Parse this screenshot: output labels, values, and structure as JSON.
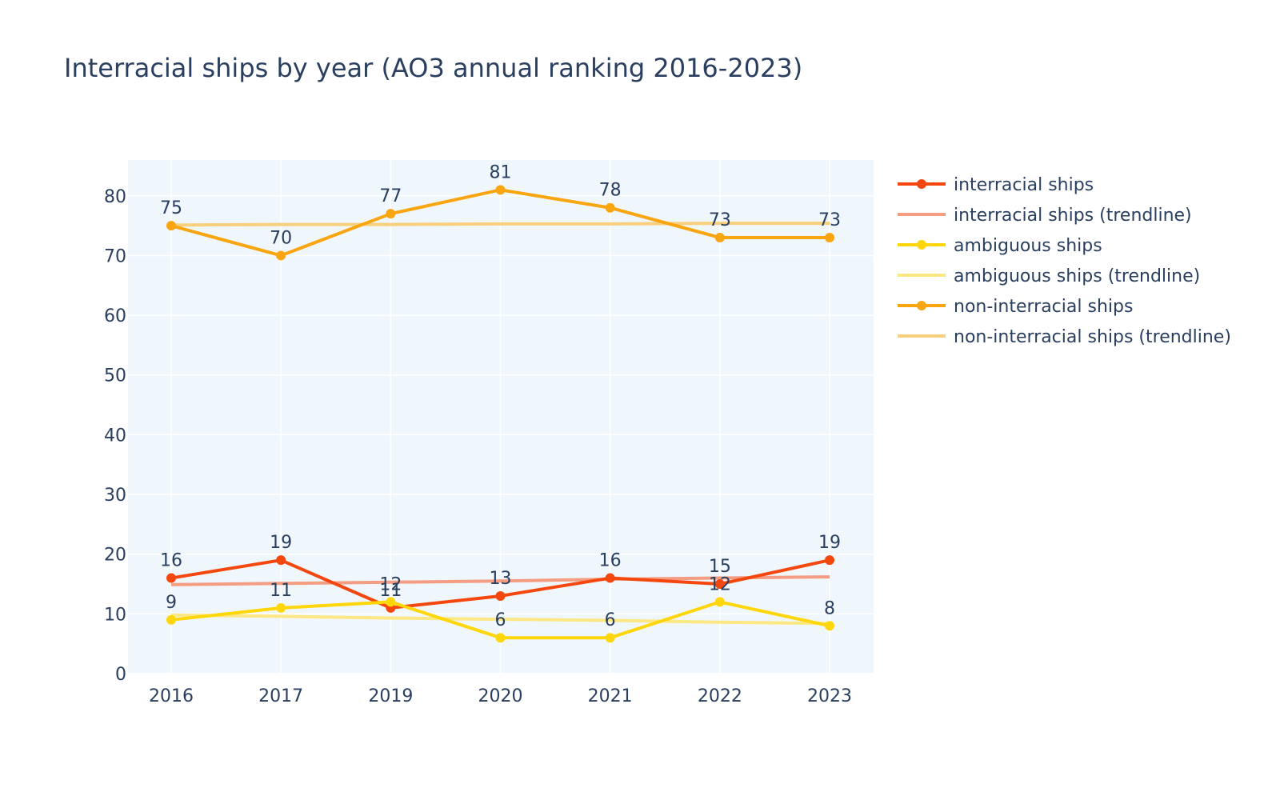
{
  "chart_data": {
    "type": "line",
    "title": "Interracial ships by year (AO3 annual ranking 2016-2023)",
    "xlabel": "",
    "ylabel": "",
    "categories": [
      "2016",
      "2017",
      "2019",
      "2020",
      "2021",
      "2022",
      "2023"
    ],
    "ylim": [
      0,
      86
    ],
    "yticks": [
      0,
      10,
      20,
      30,
      40,
      50,
      60,
      70,
      80
    ],
    "grid": true,
    "legend_position": "right",
    "plot_background": "#eff7fd",
    "series": [
      {
        "name": "interracial ships",
        "kind": "data",
        "color": "#f4470e",
        "values": [
          16,
          19,
          11,
          13,
          16,
          15,
          19
        ]
      },
      {
        "name": "interracial ships (trendline)",
        "kind": "trend",
        "color": "#f49d82",
        "values": [
          14.9,
          15.1,
          15.3,
          15.5,
          15.8,
          16.0,
          16.2
        ]
      },
      {
        "name": "ambiguous ships",
        "kind": "data",
        "color": "#ffd60a",
        "values": [
          9,
          11,
          12,
          6,
          6,
          12,
          8
        ]
      },
      {
        "name": "ambiguous ships (trendline)",
        "kind": "trend",
        "color": "#fbe784",
        "values": [
          9.8,
          9.6,
          9.3,
          9.1,
          8.9,
          8.6,
          8.4
        ]
      },
      {
        "name": "non-interracial ships",
        "kind": "data",
        "color": "#f9a50f",
        "values": [
          75,
          70,
          77,
          81,
          78,
          73,
          73
        ]
      },
      {
        "name": "non-interracial ships (trendline)",
        "kind": "trend",
        "color": "#f8cf7d",
        "values": [
          75.1,
          75.2,
          75.2,
          75.3,
          75.3,
          75.4,
          75.4
        ]
      }
    ]
  }
}
